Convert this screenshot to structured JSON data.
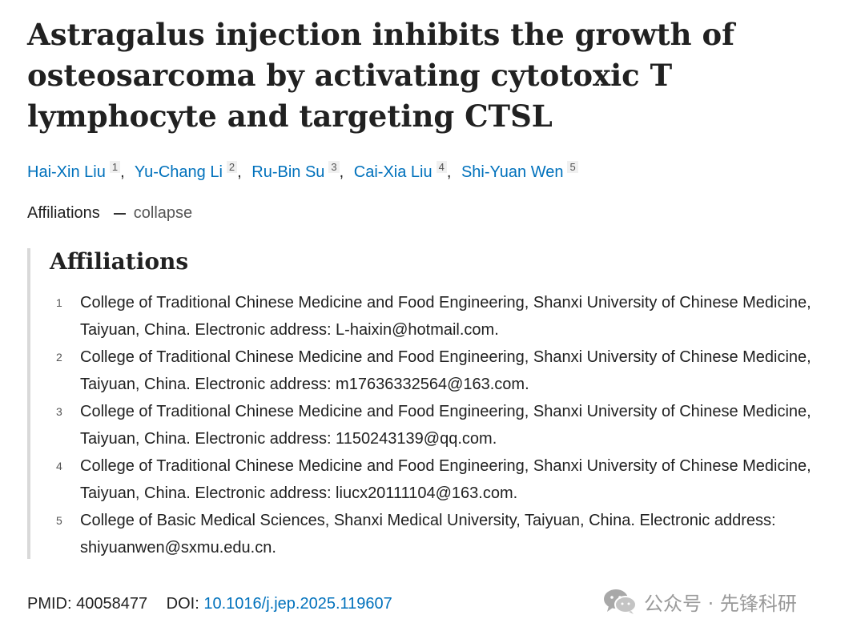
{
  "article": {
    "title": "Astragalus injection inhibits the growth of osteosarcoma by activating cytotoxic T lymphocyte and targeting CTSL"
  },
  "authors": [
    {
      "name": "Hai-Xin Liu",
      "aff": "1"
    },
    {
      "name": "Yu-Chang Li",
      "aff": "2"
    },
    {
      "name": "Ru-Bin Su",
      "aff": "3"
    },
    {
      "name": "Cai-Xia Liu",
      "aff": "4"
    },
    {
      "name": "Shi-Yuan Wen",
      "aff": "5"
    }
  ],
  "affiliations_toggle": {
    "label": "Affiliations",
    "action": "collapse"
  },
  "affiliations_heading": "Affiliations",
  "affiliations": [
    {
      "num": "1",
      "text": "College of Traditional Chinese Medicine and Food Engineering, Shanxi University of Chinese Medicine, Taiyuan, China. Electronic address: L-haixin@hotmail.com."
    },
    {
      "num": "2",
      "text": "College of Traditional Chinese Medicine and Food Engineering, Shanxi University of Chinese Medicine, Taiyuan, China. Electronic address: m17636332564@163.com."
    },
    {
      "num": "3",
      "text": "College of Traditional Chinese Medicine and Food Engineering, Shanxi University of Chinese Medicine, Taiyuan, China. Electronic address: 1150243139@qq.com."
    },
    {
      "num": "4",
      "text": "College of Traditional Chinese Medicine and Food Engineering, Shanxi University of Chinese Medicine, Taiyuan, China. Electronic address: liucx20111104@163.com."
    },
    {
      "num": "5",
      "text": "College of Basic Medical Sciences, Shanxi Medical University, Taiyuan, China. Electronic address: shiyuanwen@sxmu.edu.cn."
    }
  ],
  "identifiers": {
    "pmid_label": "PMID:",
    "pmid": "40058477",
    "doi_label": "DOI:",
    "doi": "10.1016/j.jep.2025.119607"
  },
  "watermark": {
    "text": "公众号 · 先锋科研",
    "icon": "wechat-icon"
  }
}
